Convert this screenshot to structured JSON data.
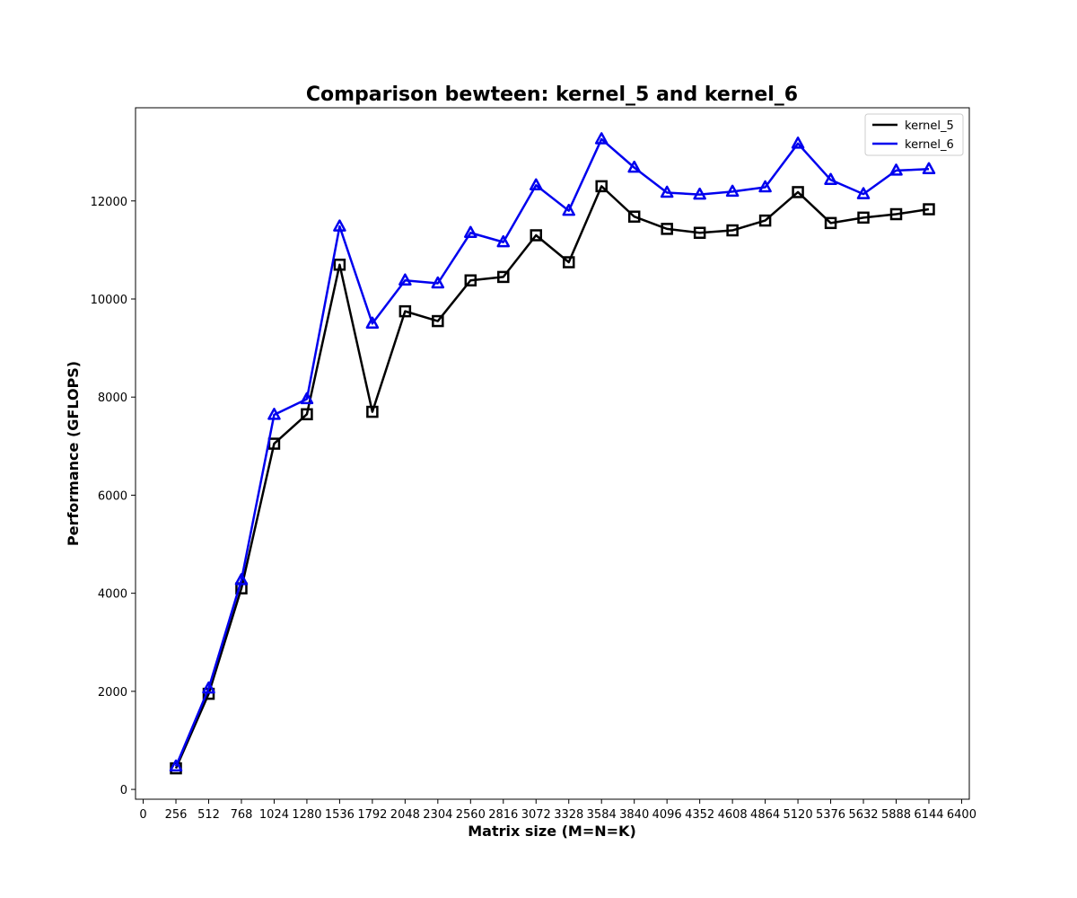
{
  "chart_data": {
    "type": "line",
    "title": "Comparison bewteen: kernel_5 and kernel_6",
    "xlabel": "Matrix size (M=N=K)",
    "ylabel": "Performance (GFLOPS)",
    "x": [
      256,
      512,
      768,
      1024,
      1280,
      1536,
      1792,
      2048,
      2304,
      2560,
      2816,
      3072,
      3328,
      3584,
      3840,
      4096,
      4352,
      4608,
      4864,
      5120,
      5376,
      5632,
      5888,
      6144
    ],
    "series": [
      {
        "name": "kernel_5",
        "color": "#000000",
        "marker": "square",
        "values": [
          430,
          1950,
          4100,
          7050,
          7650,
          10700,
          7700,
          9750,
          9550,
          10380,
          10450,
          11300,
          10750,
          12300,
          11680,
          11430,
          11350,
          11400,
          11600,
          12180,
          11550,
          11660,
          11730,
          11830
        ]
      },
      {
        "name": "kernel_6",
        "color": "#0000ee",
        "marker": "triangle",
        "values": [
          470,
          2060,
          4270,
          7640,
          7960,
          11480,
          9500,
          10380,
          10320,
          11350,
          11160,
          12320,
          11800,
          13260,
          12680,
          12170,
          12130,
          12190,
          12280,
          13170,
          12430,
          12140,
          12620,
          12650
        ]
      }
    ],
    "xlim": [
      -60,
      6460
    ],
    "ylim": [
      -200,
      13900
    ],
    "xticks": [
      "0",
      "256",
      "512",
      "768",
      "1024",
      "1280",
      "1536",
      "1792",
      "2048",
      "2304",
      "2560",
      "2816",
      "3072",
      "3328",
      "3584",
      "3840",
      "4096",
      "4352",
      "4608",
      "4864",
      "5120",
      "5376",
      "5632",
      "5888",
      "6144",
      "6400"
    ],
    "yticks": [
      "0",
      "2000",
      "4000",
      "6000",
      "8000",
      "10000",
      "12000"
    ],
    "grid": false,
    "legend_position": "top-right"
  }
}
